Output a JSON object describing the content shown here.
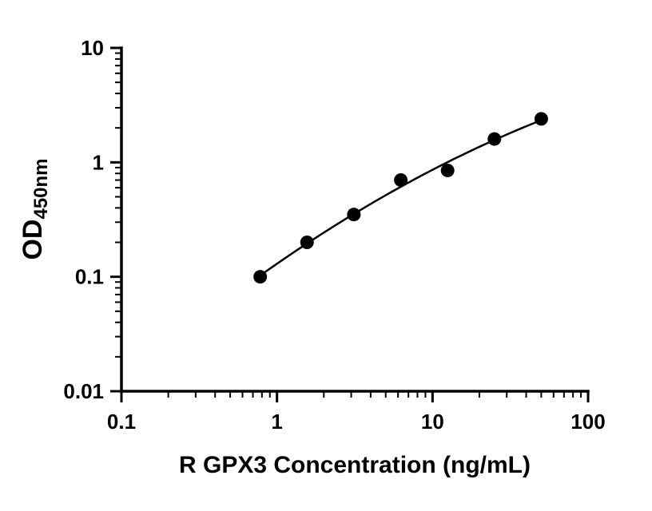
{
  "chart_data": {
    "type": "scatter",
    "title": "",
    "xlabel": "R GPX3 Concentration (ng/mL)",
    "ylabel_main": "OD",
    "ylabel_sub": "450nm",
    "x_scale": "log",
    "y_scale": "log",
    "xlim": [
      0.1,
      100
    ],
    "ylim": [
      0.01,
      10
    ],
    "grid": false,
    "legend_position": "none",
    "line_color": "#000000",
    "marker_color": "#000000",
    "x_ticks": [
      {
        "value": 0.1,
        "label": "0.1"
      },
      {
        "value": 1,
        "label": "1"
      },
      {
        "value": 10,
        "label": "10"
      },
      {
        "value": 100,
        "label": "100"
      }
    ],
    "y_ticks": [
      {
        "value": 0.01,
        "label": "0.01"
      },
      {
        "value": 0.1,
        "label": "0.1"
      },
      {
        "value": 1,
        "label": "1"
      },
      {
        "value": 10,
        "label": "10"
      }
    ],
    "points": [
      {
        "x": 0.78,
        "y": 0.1
      },
      {
        "x": 1.56,
        "y": 0.2
      },
      {
        "x": 3.12,
        "y": 0.35
      },
      {
        "x": 6.25,
        "y": 0.7
      },
      {
        "x": 12.5,
        "y": 0.85
      },
      {
        "x": 25,
        "y": 1.6
      },
      {
        "x": 50,
        "y": 2.4
      }
    ],
    "curve": "smooth fit through standard points"
  }
}
